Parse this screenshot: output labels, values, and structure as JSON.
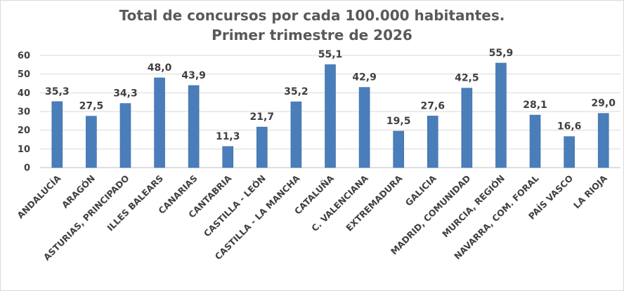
{
  "chart_data": {
    "type": "bar",
    "title_lines": [
      "Total de concursos por cada 100.000 habitantes.",
      "Primer trimestre de 2026"
    ],
    "xlabel": "",
    "ylabel": "",
    "categories": [
      "ANDALUCÍA",
      "ARAGÓN",
      "ASTURIAS, PRINCIPADO",
      "ILLES BALEARS",
      "CANARIAS",
      "CANTABRIA",
      "CASTILLA - LEÓN",
      "CASTILLA - LA MANCHA",
      "CATALUÑA",
      "C. VALENCIANA",
      "EXTREMADURA",
      "GALICIA",
      "MADRID, COMUNIDAD",
      "MURCIA, REGIÓN",
      "NAVARRA, COM. FORAL",
      "PAÍS VASCO",
      "LA RIOJA"
    ],
    "values": [
      35.3,
      27.5,
      34.3,
      48.0,
      43.9,
      11.3,
      21.7,
      35.2,
      55.1,
      42.9,
      19.5,
      27.6,
      42.5,
      55.9,
      28.1,
      16.6,
      29.0
    ],
    "data_labels": [
      "35,3",
      "27,5",
      "34,3",
      "48,0",
      "43,9",
      "11,3",
      "21,7",
      "35,2",
      "55,1",
      "42,9",
      "19,5",
      "27,6",
      "42,5",
      "55,9",
      "28,1",
      "16,6",
      "29,0"
    ],
    "ylim": [
      0,
      60
    ],
    "yticks": [
      0,
      10,
      20,
      30,
      40,
      50,
      60
    ],
    "grid": true,
    "legend": "none",
    "colors": {
      "bar": "#4a7ebb",
      "bar_edge": "#3b6aa3",
      "grid": "#d9d9d9",
      "axis": "#bfbfbf",
      "text": "#404040",
      "title": "#595959"
    }
  }
}
